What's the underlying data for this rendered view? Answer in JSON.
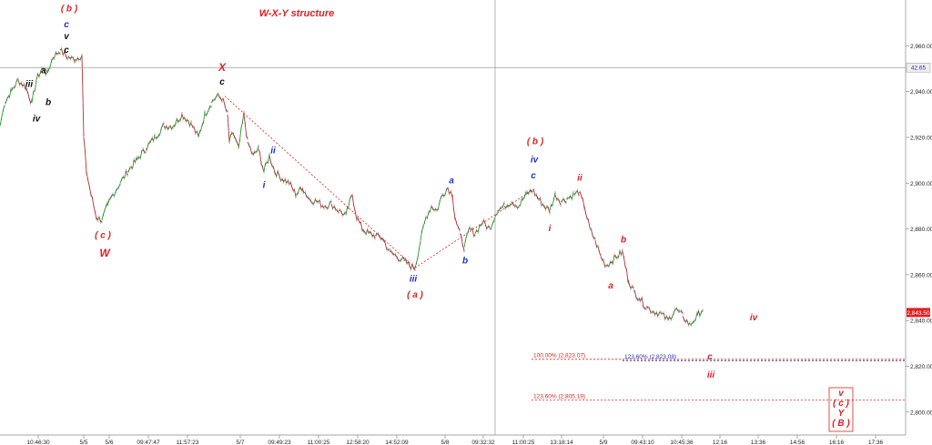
{
  "chart_data": {
    "type": "candlestick-line",
    "title": "W-X-Y structure",
    "ylim": [
      2790,
      2980
    ],
    "y_ticks": [
      "2,800.00",
      "2,820.00",
      "2,840.00",
      "2,860.00",
      "2,880.00",
      "2,900.00",
      "2,920.00",
      "2,940.00",
      "2,960.00"
    ],
    "y_tick_values": [
      2800,
      2820,
      2840,
      2860,
      2880,
      2900,
      2920,
      2940,
      2960
    ],
    "x_ticks": [
      "10:46:30",
      "5/5",
      "5/6",
      "09:47:47",
      "11:57:23",
      "5/7",
      "09:49:23",
      "11:00:25",
      "12:58:20",
      "14:52:09",
      "5/8",
      "09:32:32",
      "11:00:25",
      "13:18:14",
      "5/9",
      "09:43:10",
      "10:45:36",
      "12:16",
      "13:36",
      "14:56",
      "16:16",
      "17:36"
    ],
    "x_tick_positions": [
      42,
      92,
      120,
      163,
      206,
      264,
      307,
      350,
      393,
      436,
      489,
      531,
      575,
      617,
      663,
      706,
      749,
      791,
      833,
      876,
      919,
      962
    ],
    "price_path": [
      [
        0,
        2925
      ],
      [
        5,
        2935
      ],
      [
        12,
        2940
      ],
      [
        20,
        2945
      ],
      [
        28,
        2942
      ],
      [
        35,
        2935
      ],
      [
        40,
        2945
      ],
      [
        46,
        2950
      ],
      [
        52,
        2948
      ],
      [
        58,
        2955
      ],
      [
        66,
        2958
      ],
      [
        74,
        2955
      ],
      [
        82,
        2954
      ],
      [
        90,
        2956
      ],
      [
        92,
        2920
      ],
      [
        95,
        2905
      ],
      [
        100,
        2895
      ],
      [
        106,
        2885
      ],
      [
        112,
        2884
      ],
      [
        118,
        2890
      ],
      [
        124,
        2895
      ],
      [
        132,
        2900
      ],
      [
        140,
        2905
      ],
      [
        150,
        2910
      ],
      [
        160,
        2915
      ],
      [
        170,
        2920
      ],
      [
        180,
        2925
      ],
      [
        190,
        2925
      ],
      [
        200,
        2930
      ],
      [
        210,
        2926
      ],
      [
        218,
        2920
      ],
      [
        225,
        2930
      ],
      [
        232,
        2935
      ],
      [
        238,
        2938
      ],
      [
        244,
        2937
      ],
      [
        250,
        2930
      ],
      [
        252,
        2918
      ],
      [
        256,
        2922
      ],
      [
        262,
        2915
      ],
      [
        268,
        2930
      ],
      [
        272,
        2918
      ],
      [
        278,
        2912
      ],
      [
        284,
        2915
      ],
      [
        290,
        2905
      ],
      [
        296,
        2912
      ],
      [
        302,
        2905
      ],
      [
        310,
        2902
      ],
      [
        318,
        2900
      ],
      [
        325,
        2895
      ],
      [
        332,
        2898
      ],
      [
        340,
        2893
      ],
      [
        348,
        2892
      ],
      [
        356,
        2890
      ],
      [
        364,
        2891
      ],
      [
        372,
        2888
      ],
      [
        380,
        2886
      ],
      [
        387,
        2895
      ],
      [
        392,
        2885
      ],
      [
        398,
        2880
      ],
      [
        405,
        2878
      ],
      [
        412,
        2877
      ],
      [
        420,
        2876
      ],
      [
        428,
        2870
      ],
      [
        436,
        2868
      ],
      [
        444,
        2866
      ],
      [
        450,
        2864
      ],
      [
        456,
        2863
      ],
      [
        462,
        2875
      ],
      [
        468,
        2885
      ],
      [
        474,
        2890
      ],
      [
        480,
        2888
      ],
      [
        486,
        2895
      ],
      [
        492,
        2898
      ],
      [
        497,
        2895
      ],
      [
        500,
        2885
      ],
      [
        505,
        2878
      ],
      [
        510,
        2872
      ],
      [
        516,
        2880
      ],
      [
        522,
        2878
      ],
      [
        530,
        2883
      ],
      [
        538,
        2880
      ],
      [
        546,
        2888
      ],
      [
        554,
        2890
      ],
      [
        562,
        2892
      ],
      [
        570,
        2890
      ],
      [
        578,
        2895
      ],
      [
        585,
        2897
      ],
      [
        592,
        2893
      ],
      [
        598,
        2890
      ],
      [
        604,
        2888
      ],
      [
        610,
        2895
      ],
      [
        616,
        2892
      ],
      [
        622,
        2893
      ],
      [
        630,
        2895
      ],
      [
        636,
        2896
      ],
      [
        642,
        2890
      ],
      [
        648,
        2880
      ],
      [
        654,
        2875
      ],
      [
        660,
        2868
      ],
      [
        666,
        2864
      ],
      [
        672,
        2866
      ],
      [
        678,
        2868
      ],
      [
        684,
        2870
      ],
      [
        690,
        2858
      ],
      [
        696,
        2853
      ],
      [
        702,
        2850
      ],
      [
        710,
        2846
      ],
      [
        718,
        2844
      ],
      [
        726,
        2843
      ],
      [
        734,
        2840
      ],
      [
        742,
        2845
      ],
      [
        750,
        2842
      ],
      [
        758,
        2838
      ],
      [
        766,
        2842
      ],
      [
        772,
        2845
      ]
    ],
    "current_price_label": "2,843.50",
    "cursor_price_label": "42.65",
    "cursor_price_value": 2950.5,
    "cursor_x": 544,
    "fib_levels": [
      {
        "label": "100.00% (2,823.07)",
        "value": 2823.07,
        "x_start": 584,
        "x_end": 995,
        "color": "#e02020"
      },
      {
        "label": "123.60% (2,823.08)",
        "value": 2823.08,
        "x_start": 684,
        "x_end": 995,
        "color": "#2030c0"
      },
      {
        "label": "123.60% (2,805.19)",
        "value": 2805.19,
        "x_start": 584,
        "x_end": 995,
        "color": "#e02020"
      }
    ],
    "trend_lines": [
      {
        "from": [
          247,
          2938
        ],
        "to": [
          456,
          2863
        ]
      },
      {
        "from": [
          456,
          2863
        ],
        "to": [
          585,
          2897
        ]
      }
    ],
    "wave_labels": [
      {
        "text": "( b )",
        "x": 76,
        "v": 2975,
        "color": "#e02020",
        "size": 10
      },
      {
        "text": "c",
        "x": 73,
        "v": 2968,
        "color": "#2030c0",
        "size": 10
      },
      {
        "text": "v",
        "x": 73,
        "v": 2963,
        "color": "#111111",
        "size": 10
      },
      {
        "text": "c",
        "x": 73,
        "v": 2957,
        "color": "#111111",
        "size": 10
      },
      {
        "text": "a",
        "x": 48,
        "v": 2948,
        "color": "#111111",
        "size": 10
      },
      {
        "text": "iii",
        "x": 32,
        "v": 2942,
        "color": "#111111",
        "size": 10
      },
      {
        "text": "b",
        "x": 53,
        "v": 2934,
        "color": "#111111",
        "size": 10
      },
      {
        "text": "iv",
        "x": 40,
        "v": 2927,
        "color": "#111111",
        "size": 10
      },
      {
        "text": "X",
        "x": 244,
        "v": 2949,
        "color": "#e02020",
        "size": 12
      },
      {
        "text": "c",
        "x": 244,
        "v": 2943,
        "color": "#111111",
        "size": 10
      },
      {
        "text": "ii",
        "x": 300,
        "v": 2913,
        "color": "#2030c0",
        "size": 10
      },
      {
        "text": "i",
        "x": 290,
        "v": 2898,
        "color": "#2030c0",
        "size": 10
      },
      {
        "text": "( c )",
        "x": 113,
        "v": 2876,
        "color": "#e02020",
        "size": 10
      },
      {
        "text": "W",
        "x": 115,
        "v": 2868,
        "color": "#e02020",
        "size": 12
      },
      {
        "text": "a",
        "x": 496,
        "v": 2900,
        "color": "#2030c0",
        "size": 10
      },
      {
        "text": "b",
        "x": 511,
        "v": 2865,
        "color": "#2030c0",
        "size": 10
      },
      {
        "text": "iii",
        "x": 454,
        "v": 2857,
        "color": "#2030c0",
        "size": 10
      },
      {
        "text": "( a )",
        "x": 456,
        "v": 2850,
        "color": "#e02020",
        "size": 10
      },
      {
        "text": "( b )",
        "x": 588,
        "v": 2917,
        "color": "#e02020",
        "size": 10
      },
      {
        "text": "iv",
        "x": 587,
        "v": 2909,
        "color": "#2030c0",
        "size": 10
      },
      {
        "text": "c",
        "x": 586,
        "v": 2902,
        "color": "#2030c0",
        "size": 10
      },
      {
        "text": "ii",
        "x": 637,
        "v": 2901,
        "color": "#e02020",
        "size": 10
      },
      {
        "text": "i",
        "x": 604,
        "v": 2879,
        "color": "#e02020",
        "size": 10
      },
      {
        "text": "b",
        "x": 685,
        "v": 2874,
        "color": "#e02020",
        "size": 10
      },
      {
        "text": "a",
        "x": 671,
        "v": 2854,
        "color": "#e02020",
        "size": 10
      },
      {
        "text": "iv",
        "x": 828,
        "v": 2840,
        "color": "#e02020",
        "size": 10
      },
      {
        "text": "c",
        "x": 780,
        "v": 2823,
        "color": "#e02020",
        "size": 10
      },
      {
        "text": "iii",
        "x": 781,
        "v": 2815,
        "color": "#e02020",
        "size": 10
      }
    ],
    "boxed_labels": {
      "lines": [
        "v",
        "( c )",
        "Y",
        "( B )"
      ],
      "x": 924,
      "color": "#e02020"
    }
  }
}
